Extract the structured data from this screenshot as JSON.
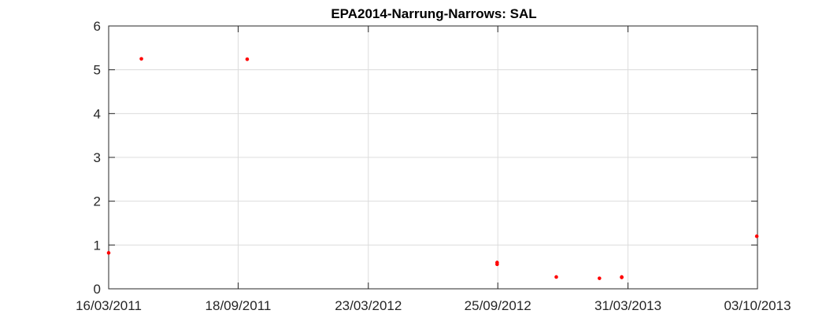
{
  "chart_data": {
    "type": "scatter",
    "title": "EPA2014-Narrung-Narrows: SAL",
    "xlabel": "",
    "ylabel": "",
    "x_type": "date",
    "xlim": [
      "2011-03-16",
      "2013-10-03"
    ],
    "ylim": [
      0,
      6
    ],
    "x_ticks": [
      "2011-03-16",
      "2011-09-18",
      "2012-03-23",
      "2012-09-25",
      "2013-03-31",
      "2013-10-03"
    ],
    "x_tick_labels": [
      "16/03/2011",
      "18/09/2011",
      "23/03/2012",
      "25/09/2012",
      "31/03/2013",
      "03/10/2013"
    ],
    "y_ticks": [
      0,
      1,
      2,
      3,
      4,
      5,
      6
    ],
    "y_tick_labels": [
      "0",
      "1",
      "2",
      "3",
      "4",
      "5",
      "6"
    ],
    "grid": true,
    "marker_color": "#ff0000",
    "series": [
      {
        "x": [
          "2011-03-16",
          "2011-05-02",
          "2011-10-01",
          "2012-09-24",
          "2012-09-24",
          "2012-12-18",
          "2013-02-18",
          "2013-03-22",
          "2013-03-22",
          "2013-10-02"
        ],
        "y": [
          0.82,
          5.25,
          5.24,
          0.56,
          0.6,
          0.27,
          0.24,
          0.26,
          0.27,
          1.2
        ]
      }
    ]
  }
}
